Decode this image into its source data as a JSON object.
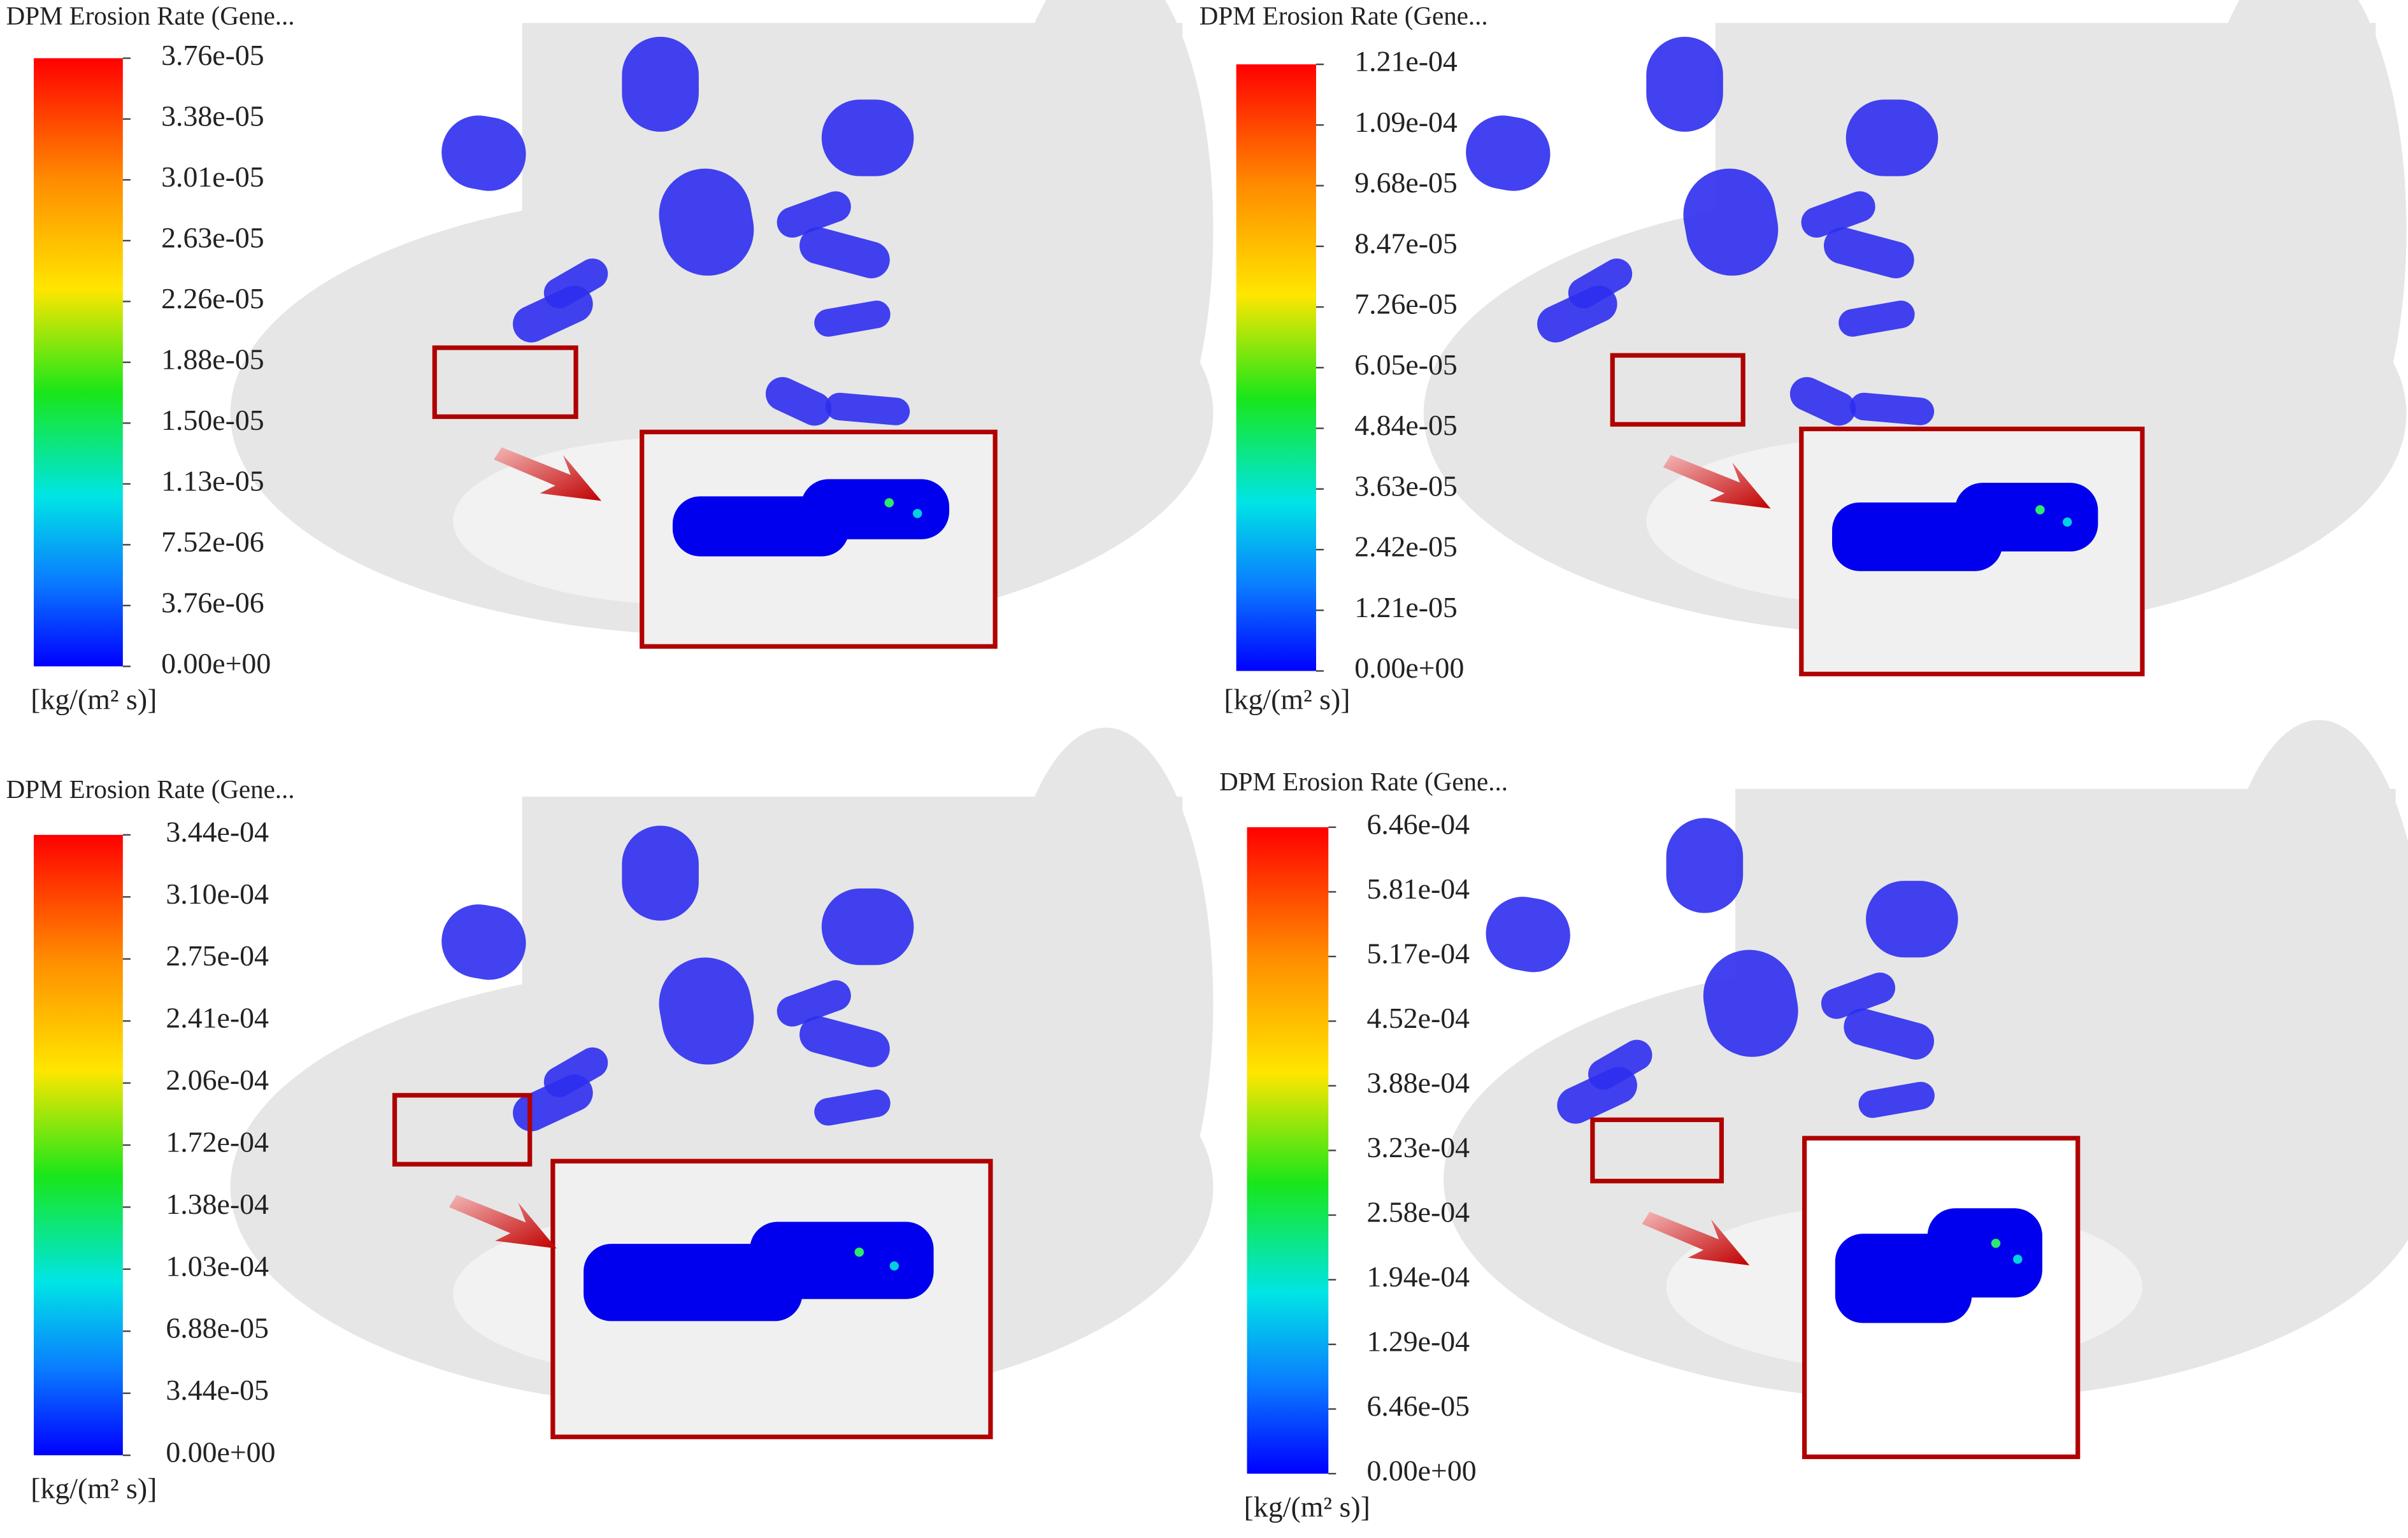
{
  "panels": [
    {
      "title": "DPM Erosion Rate (Gene...",
      "ticks": [
        "3.76e-05",
        "3.38e-05",
        "3.01e-05",
        "2.63e-05",
        "2.26e-05",
        "1.88e-05",
        "1.50e-05",
        "1.13e-05",
        "7.52e-06",
        "3.76e-06",
        "0.00e+00"
      ],
      "unit": "[kg/(m² s)]"
    },
    {
      "title": "DPM Erosion Rate (Gene...",
      "ticks": [
        "1.21e-04",
        "1.09e-04",
        "9.68e-05",
        "8.47e-05",
        "7.26e-05",
        "6.05e-05",
        "4.84e-05",
        "3.63e-05",
        "2.42e-05",
        "1.21e-05",
        "0.00e+00"
      ],
      "unit": "[kg/(m² s)]"
    },
    {
      "title": "DPM Erosion Rate (Gene...",
      "ticks": [
        "3.44e-04",
        "3.10e-04",
        "2.75e-04",
        "2.41e-04",
        "2.06e-04",
        "1.72e-04",
        "1.38e-04",
        "1.03e-04",
        "6.88e-05",
        "3.44e-05",
        "0.00e+00"
      ],
      "unit": "[kg/(m² s)]"
    },
    {
      "title": "DPM Erosion Rate (Gene...",
      "ticks": [
        "6.46e-04",
        "5.81e-04",
        "5.17e-04",
        "4.52e-04",
        "3.88e-04",
        "3.23e-04",
        "2.58e-04",
        "1.94e-04",
        "1.29e-04",
        "6.46e-05",
        "0.00e+00"
      ],
      "unit": "[kg/(m² s)]"
    }
  ]
}
